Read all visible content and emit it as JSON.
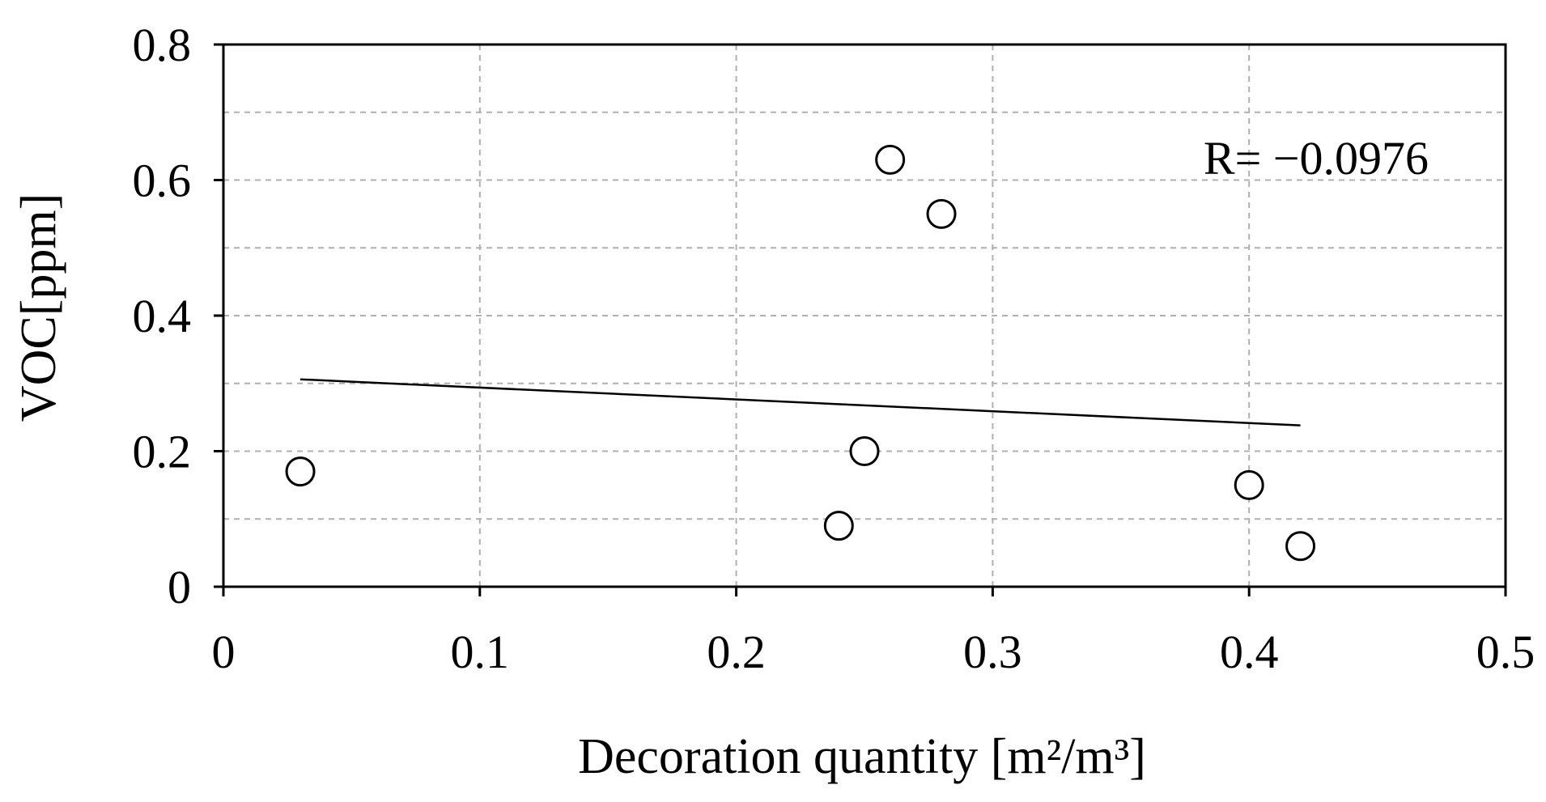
{
  "chart_data": {
    "type": "scatter",
    "xlabel": "Decoration quantity [m²/m³]",
    "ylabel": "VOC[ppm]",
    "xlim": [
      0,
      0.5
    ],
    "ylim": [
      0,
      0.8
    ],
    "x_ticks": [
      0,
      0.1,
      0.2,
      0.3,
      0.4,
      0.5
    ],
    "y_ticks": [
      0,
      0.2,
      0.4,
      0.6,
      0.8
    ],
    "x_tick_labels": [
      "0",
      "0.1",
      "0.2",
      "0.3",
      "0.4",
      "0.5"
    ],
    "y_tick_labels": [
      "0",
      "0.2",
      "0.4",
      "0.6",
      "0.8"
    ],
    "grid": true,
    "points": [
      {
        "x": 0.03,
        "y": 0.17
      },
      {
        "x": 0.24,
        "y": 0.09
      },
      {
        "x": 0.25,
        "y": 0.2
      },
      {
        "x": 0.26,
        "y": 0.63
      },
      {
        "x": 0.28,
        "y": 0.55
      },
      {
        "x": 0.4,
        "y": 0.15
      },
      {
        "x": 0.42,
        "y": 0.06
      }
    ],
    "trendline": {
      "x": [
        0.03,
        0.42
      ],
      "y": [
        0.306,
        0.238
      ]
    },
    "annotation": "R= −0.0976",
    "marker": "open-circle",
    "colors": {
      "marker_stroke": "#000000",
      "marker_fill": "#ffffff",
      "line": "#000000",
      "grid": "#b0b0b0",
      "frame": "#000000"
    }
  }
}
